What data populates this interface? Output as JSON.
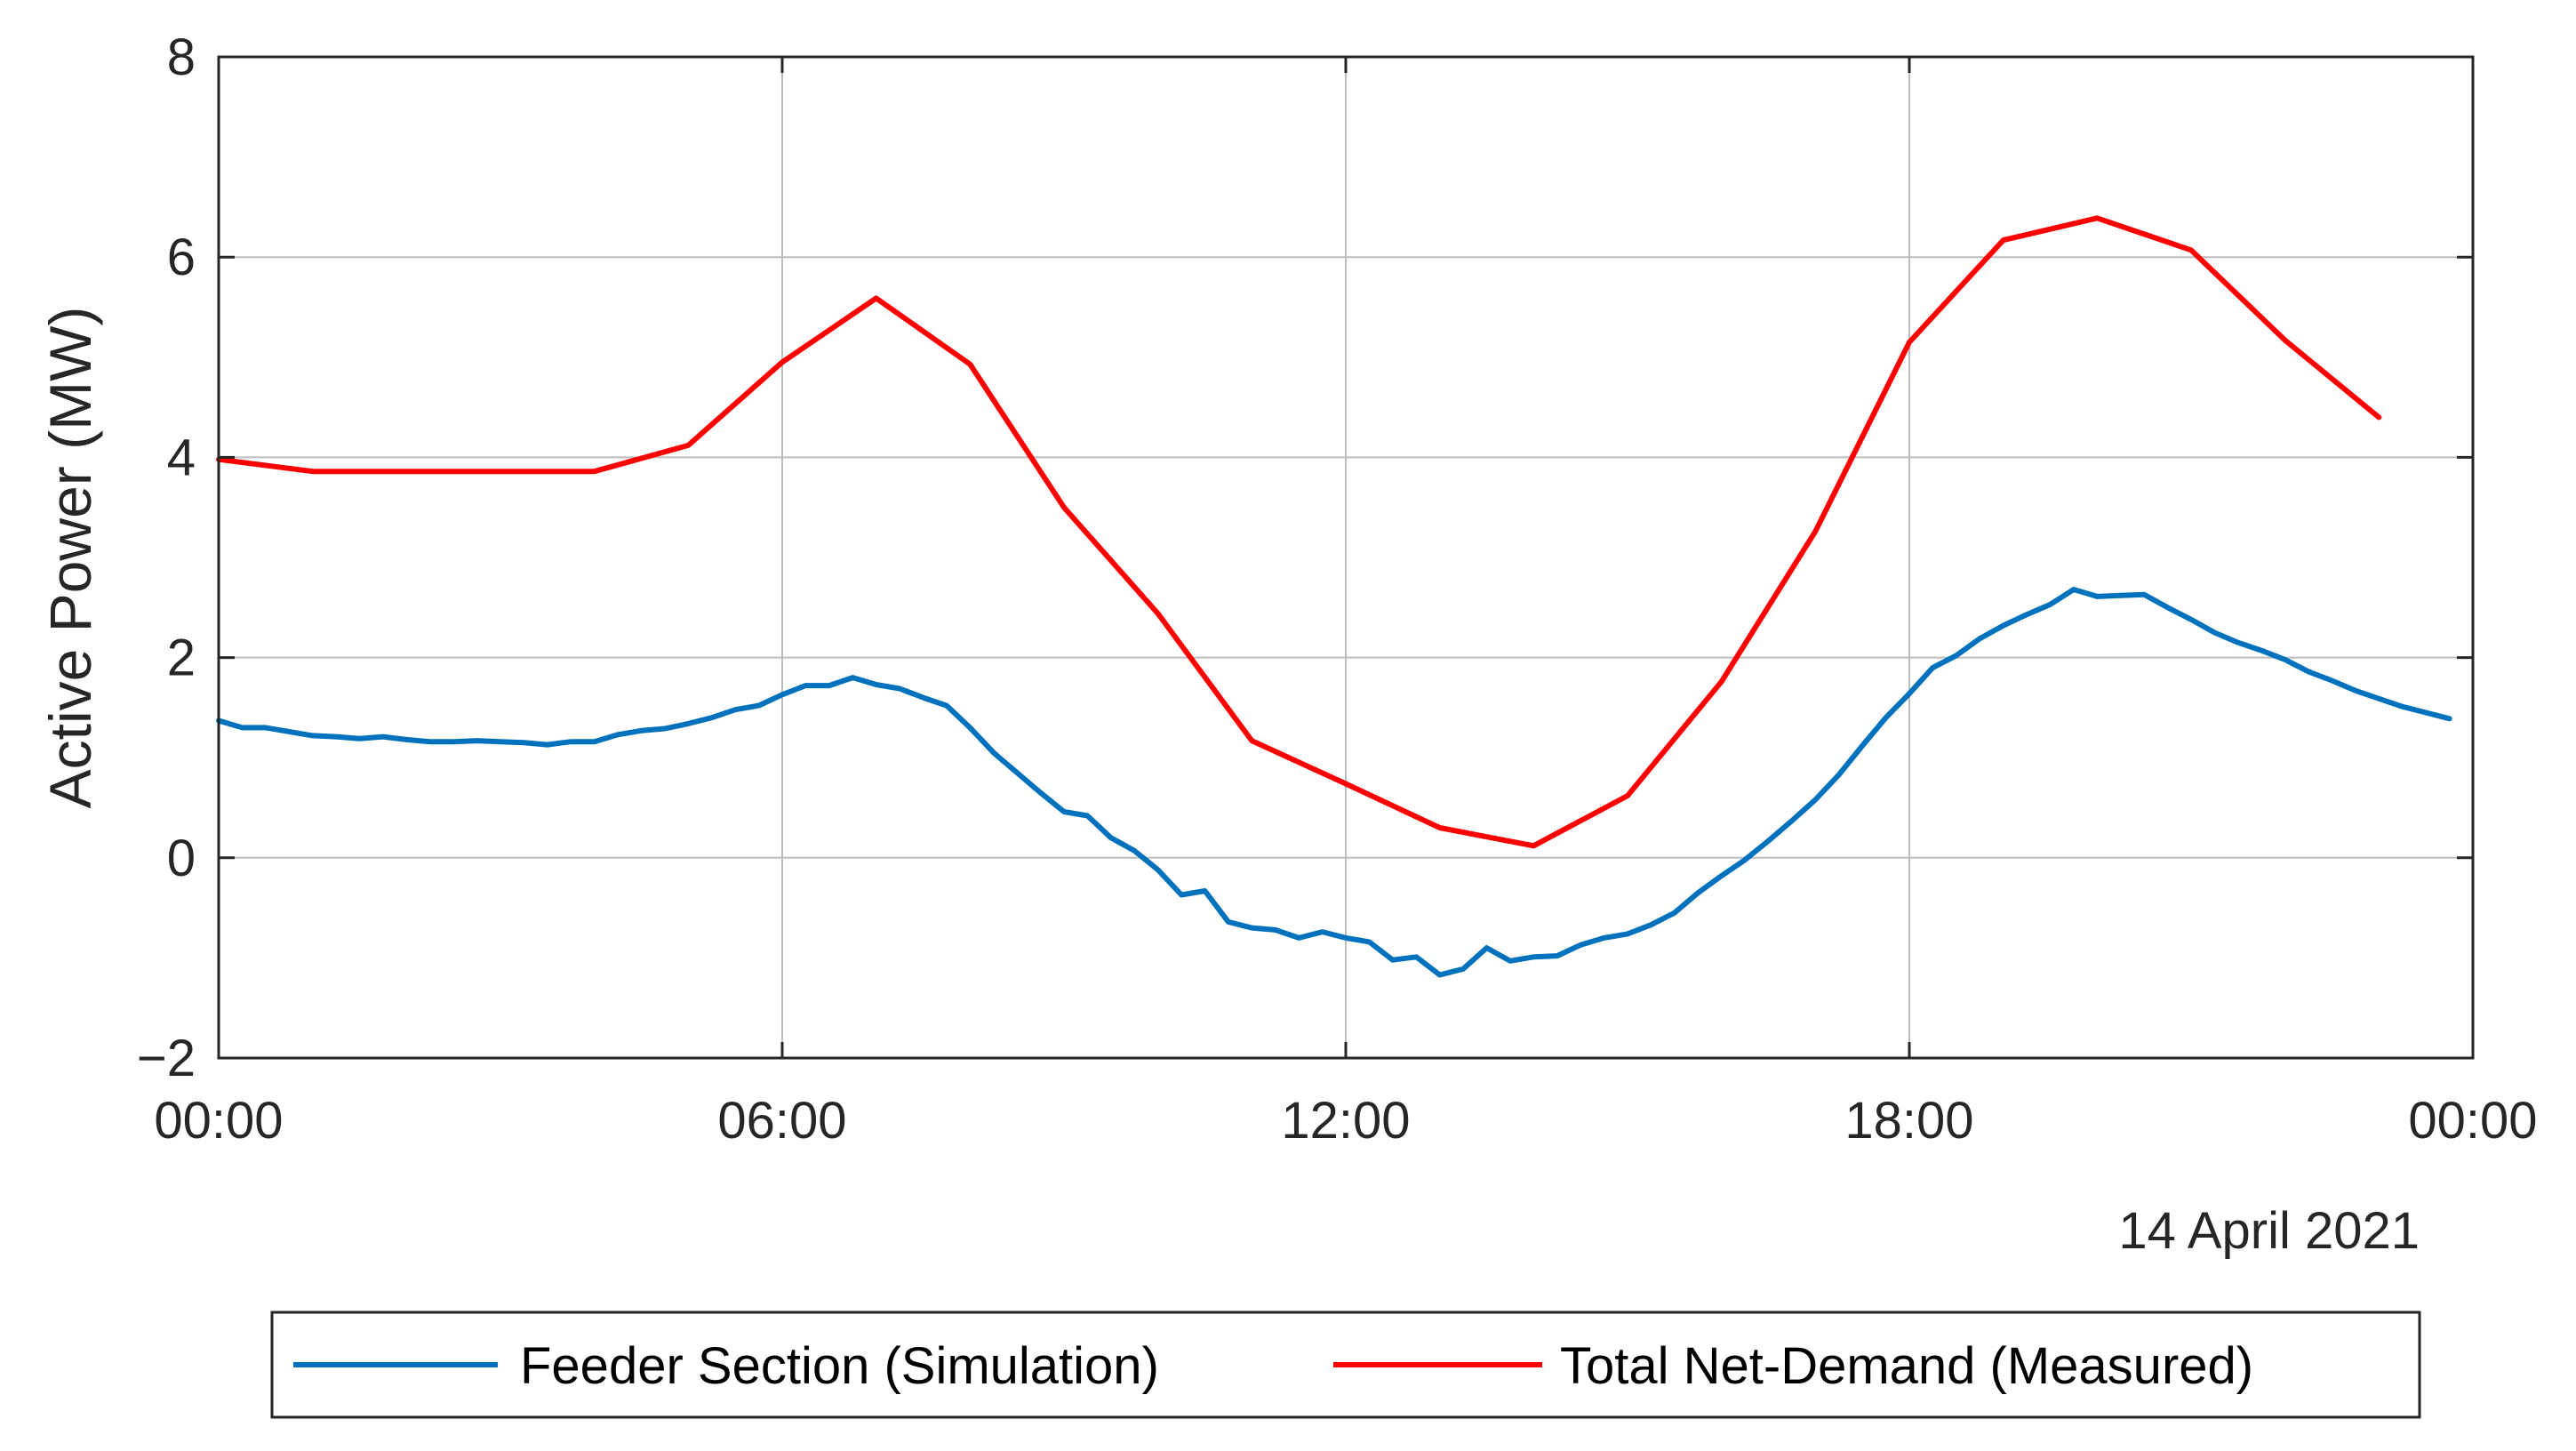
{
  "chart_data": {
    "type": "line",
    "title": "",
    "xlabel": "",
    "ylabel": "Active Power (MW)",
    "x_secondary_label": "14 April 2021",
    "xlim": [
      0,
      24
    ],
    "ylim": [
      -2,
      8
    ],
    "x_ticks": [
      0,
      6,
      12,
      18,
      24
    ],
    "x_tick_labels": [
      "00:00",
      "06:00",
      "12:00",
      "18:00",
      "00:00"
    ],
    "y_ticks": [
      -2,
      0,
      2,
      4,
      6,
      8
    ],
    "y_tick_labels": [
      "−2",
      "0",
      "2",
      "4",
      "6",
      "8"
    ],
    "grid": true,
    "legend_position": "bottom-outside",
    "colors": {
      "background": "#ffffff",
      "axis": "#262626",
      "grid": "#bdbdbd"
    },
    "series": [
      {
        "name": "Feeder Section (Simulation)",
        "color": "#0072BD",
        "x": [
          "00:00",
          "00:15",
          "00:30",
          "00:45",
          "01:00",
          "01:15",
          "01:30",
          "01:45",
          "02:00",
          "02:15",
          "02:30",
          "02:45",
          "03:00",
          "03:15",
          "03:30",
          "03:45",
          "04:00",
          "04:15",
          "04:30",
          "04:45",
          "05:00",
          "05:15",
          "05:30",
          "05:45",
          "06:00",
          "06:15",
          "06:30",
          "06:45",
          "07:00",
          "07:15",
          "07:30",
          "07:45",
          "08:00",
          "08:15",
          "08:30",
          "08:45",
          "09:00",
          "09:15",
          "09:30",
          "09:45",
          "10:00",
          "10:15",
          "10:30",
          "10:45",
          "11:00",
          "11:15",
          "11:30",
          "11:45",
          "12:00",
          "12:15",
          "12:30",
          "12:45",
          "13:00",
          "13:15",
          "13:30",
          "13:45",
          "14:00",
          "14:15",
          "14:30",
          "14:45",
          "15:00",
          "15:15",
          "15:30",
          "15:45",
          "16:00",
          "16:15",
          "16:30",
          "16:45",
          "17:00",
          "17:15",
          "17:30",
          "17:45",
          "18:00",
          "18:15",
          "18:30",
          "18:45",
          "19:00",
          "19:15",
          "19:30",
          "19:45",
          "20:00",
          "20:15",
          "20:30",
          "20:45",
          "21:00",
          "21:15",
          "21:30",
          "21:45",
          "22:00",
          "22:15",
          "22:30",
          "22:45",
          "23:00",
          "23:15",
          "23:30",
          "23:45"
        ],
        "values": [
          1.37,
          1.3,
          1.3,
          1.26,
          1.22,
          1.21,
          1.19,
          1.21,
          1.18,
          1.16,
          1.16,
          1.17,
          1.16,
          1.15,
          1.13,
          1.16,
          1.16,
          1.23,
          1.27,
          1.29,
          1.34,
          1.4,
          1.48,
          1.52,
          1.63,
          1.72,
          1.72,
          1.8,
          1.73,
          1.69,
          1.6,
          1.52,
          1.3,
          1.05,
          0.85,
          0.65,
          0.46,
          0.42,
          0.2,
          0.07,
          -0.12,
          -0.37,
          -0.33,
          -0.64,
          -0.7,
          -0.72,
          -0.8,
          -0.74,
          -0.8,
          -0.84,
          -1.02,
          -0.99,
          -1.17,
          -1.11,
          -0.9,
          -1.03,
          -0.99,
          -0.98,
          -0.87,
          -0.8,
          -0.76,
          -0.67,
          -0.55,
          -0.35,
          -0.18,
          -0.02,
          0.17,
          0.37,
          0.58,
          0.83,
          1.12,
          1.4,
          1.64,
          1.9,
          2.02,
          2.19,
          2.32,
          2.43,
          2.53,
          2.68,
          2.61,
          2.62,
          2.63,
          2.5,
          2.38,
          2.25,
          2.15,
          2.07,
          1.98,
          1.86,
          1.77,
          1.67,
          1.59,
          1.51,
          1.45,
          1.39
        ]
      },
      {
        "name": "Total Net-Demand (Measured)",
        "color": "#FF0000",
        "x": [
          "00:00",
          "01:00",
          "02:00",
          "03:00",
          "04:00",
          "05:00",
          "06:00",
          "07:00",
          "08:00",
          "09:00",
          "10:00",
          "11:00",
          "12:00",
          "13:00",
          "14:00",
          "15:00",
          "16:00",
          "17:00",
          "18:00",
          "19:00",
          "20:00",
          "21:00",
          "22:00",
          "23:00"
        ],
        "values": [
          3.98,
          3.86,
          3.86,
          3.86,
          3.86,
          4.12,
          4.95,
          5.59,
          4.93,
          3.5,
          2.44,
          1.17,
          0.74,
          0.3,
          0.12,
          0.62,
          1.76,
          3.26,
          5.15,
          6.17,
          6.39,
          6.07,
          5.17,
          4.4
        ]
      }
    ]
  }
}
